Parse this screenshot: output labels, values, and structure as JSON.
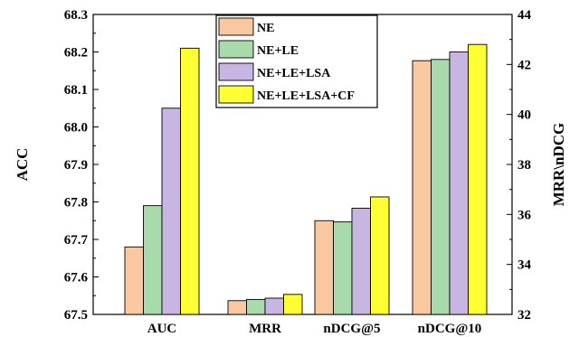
{
  "chart_data": {
    "type": "bar",
    "categories": [
      "AUC",
      "MRR",
      "nDCG@5",
      "nDCG@10"
    ],
    "category_axis": [
      "left",
      "right",
      "right",
      "right"
    ],
    "series": [
      {
        "name": "NE",
        "color": "#F9C7A0",
        "values": [
          67.68,
          32.55,
          35.75,
          42.15
        ]
      },
      {
        "name": "NE+LE",
        "color": "#A9DAAB",
        "values": [
          67.79,
          32.6,
          35.7,
          42.2
        ]
      },
      {
        "name": "NE+LE+LSA",
        "color": "#C8B6E2",
        "values": [
          68.05,
          32.65,
          36.25,
          42.5
        ]
      },
      {
        "name": "NE+LE+LSA+CF",
        "color": "#FFFF33",
        "values": [
          68.21,
          32.8,
          36.7,
          42.8
        ]
      }
    ],
    "ylabel_left": "ACC",
    "ylabel_right": "MRR\\nDCG",
    "ylim_left": [
      67.5,
      68.3
    ],
    "ylim_right": [
      32,
      44
    ],
    "yticks_left": [
      "67.5",
      "67.6",
      "67.7",
      "67.8",
      "67.9",
      "68.0",
      "68.1",
      "68.2",
      "68.3"
    ],
    "yticks_right": [
      "32",
      "34",
      "36",
      "38",
      "40",
      "42",
      "44"
    ],
    "legend_position": "top-center",
    "grid": false
  }
}
